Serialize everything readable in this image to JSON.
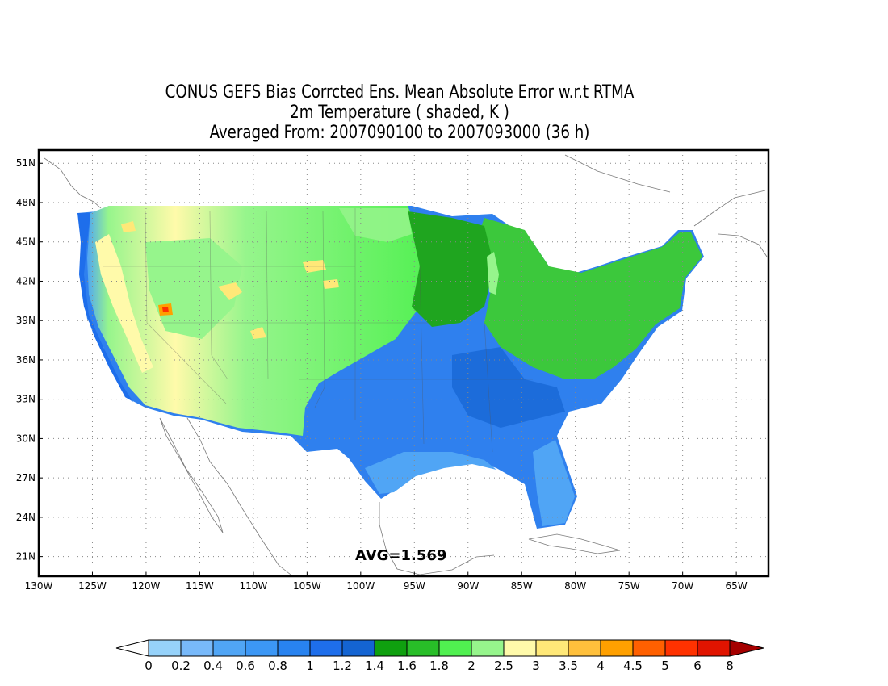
{
  "title": {
    "line1": "CONUS GEFS Bias Corrcted Ens. Mean Absolute Error w.r.t RTMA",
    "line2": "2m Temperature ( shaded, K )",
    "line3": "Averaged From: 2007090100 to 2007093000 (36 h)"
  },
  "map": {
    "lon_range": [
      -130,
      -62
    ],
    "lat_range": [
      19.5,
      52
    ],
    "lon_ticks": [
      -130,
      -125,
      -120,
      -115,
      -110,
      -105,
      -100,
      -95,
      -90,
      -85,
      -80,
      -75,
      -70,
      -65
    ],
    "lon_tick_labels": [
      "130W",
      "125W",
      "120W",
      "115W",
      "110W",
      "105W",
      "100W",
      "95W",
      "90W",
      "85W",
      "80W",
      "75W",
      "70W",
      "65W"
    ],
    "lat_ticks": [
      21,
      24,
      27,
      30,
      33,
      36,
      39,
      42,
      45,
      48,
      51
    ],
    "lat_tick_labels": [
      "21N",
      "24N",
      "27N",
      "30N",
      "33N",
      "36N",
      "39N",
      "42N",
      "45N",
      "48N",
      "51N"
    ],
    "grid": "dotted",
    "average_label": "AVG=1.569",
    "shading_zones": [
      {
        "region": "Pacific coast and offshore",
        "mae_range": "0.6-1.2"
      },
      {
        "region": "California Central Valley and Great Basin",
        "mae_range": "2-4.5"
      },
      {
        "region": "Rocky Mountains and Great Plains",
        "mae_range": "1.4-2.5"
      },
      {
        "region": "Southeast and Gulf Coast",
        "mae_range": "0.6-1.2"
      },
      {
        "region": "Northeast and Great Lakes",
        "mae_range": "0.8-2"
      }
    ]
  },
  "colorbar": {
    "labels": [
      "0",
      "0.2",
      "0.4",
      "0.6",
      "0.8",
      "1",
      "1.2",
      "1.4",
      "1.6",
      "1.8",
      "2",
      "2.5",
      "3",
      "3.5",
      "4",
      "4.5",
      "5",
      "6",
      "8"
    ],
    "colors": [
      "#ffffff",
      "#96d2fa",
      "#78b9fa",
      "#50a5f5",
      "#3c97f5",
      "#2883f0",
      "#1e6eeb",
      "#1464d2",
      "#0fa00f",
      "#28be28",
      "#50f050",
      "#96f58c",
      "#fffaaa",
      "#ffe878",
      "#ffc03c",
      "#ffa000",
      "#ff6000",
      "#ff3200",
      "#e11400",
      "#a50000"
    ]
  }
}
